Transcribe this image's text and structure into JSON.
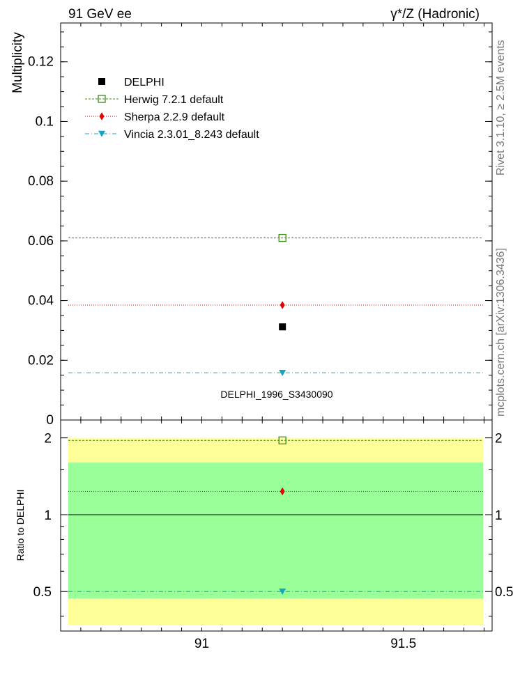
{
  "header": {
    "left": "91 GeV ee",
    "right": "γ*/Z (Hadronic)"
  },
  "side_text": {
    "rivet": "Rivet 3.1.10, ≥ 2.5M events",
    "mcplots": "mcplots.cern.ch [arXiv:1306.3436]"
  },
  "chart_data": [
    {
      "type": "scatter",
      "ylabel": "Multiplicity",
      "xlim": [
        90.65,
        91.72
      ],
      "ylim": [
        0,
        0.133
      ],
      "yticks": [
        0,
        0.02,
        0.04,
        0.06,
        0.08,
        0.1,
        0.12
      ],
      "ytick_labels": [
        "0",
        "0.02",
        "0.04",
        "0.06",
        "0.08",
        "0.1",
        "0.12"
      ],
      "watermark": "DELPHI_1996_S3430090",
      "legend_position": "top-left",
      "series": [
        {
          "name": "DELPHI",
          "x": 91.2,
          "y": 0.0312,
          "color": "#000000",
          "marker": "filled-square",
          "line": "none"
        },
        {
          "name": "Herwig 7.2.1 default",
          "x": 91.2,
          "y": 0.061,
          "color": "#3c8a14",
          "marker": "open-square",
          "line": "dashed"
        },
        {
          "name": "Sherpa 2.2.9 default",
          "x": 91.2,
          "y": 0.0385,
          "color": "#e00000",
          "marker": "filled-diamond",
          "line": "dotted"
        },
        {
          "name": "Vincia 2.3.01_8.243 default",
          "x": 91.2,
          "y": 0.0158,
          "color": "#1aa4c0",
          "marker": "filled-triangle-down",
          "line": "dashdot"
        }
      ]
    },
    {
      "type": "scatter",
      "ylabel": "Ratio to DELPHI",
      "xlim": [
        90.65,
        91.72
      ],
      "ylim": [
        0.35,
        2.35
      ],
      "log_y": true,
      "yticks": [
        0.5,
        1,
        2
      ],
      "ytick_labels": [
        "0.5",
        "1",
        "2"
      ],
      "xticks": [
        91,
        91.5
      ],
      "xtick_labels": [
        "91",
        "91.5"
      ],
      "bands": [
        {
          "low": 0.37,
          "high": 2.0,
          "color": "#ffff99"
        },
        {
          "low": 0.47,
          "high": 1.6,
          "color": "#99ff99"
        }
      ],
      "series": [
        {
          "name": "Herwig 7.2.1 default",
          "x": 91.2,
          "y": 1.955,
          "color": "#3c8a14",
          "marker": "open-square",
          "line": "dashed"
        },
        {
          "name": "Sherpa 2.2.9 default",
          "x": 91.2,
          "y": 1.234,
          "color": "#e00000",
          "marker": "filled-diamond",
          "line": "dotted"
        },
        {
          "name": "Vincia 2.3.01_8.243 default",
          "x": 91.2,
          "y": 0.5,
          "color": "#1aa4c0",
          "marker": "filled-triangle-down",
          "line": "dashdot"
        }
      ]
    }
  ]
}
